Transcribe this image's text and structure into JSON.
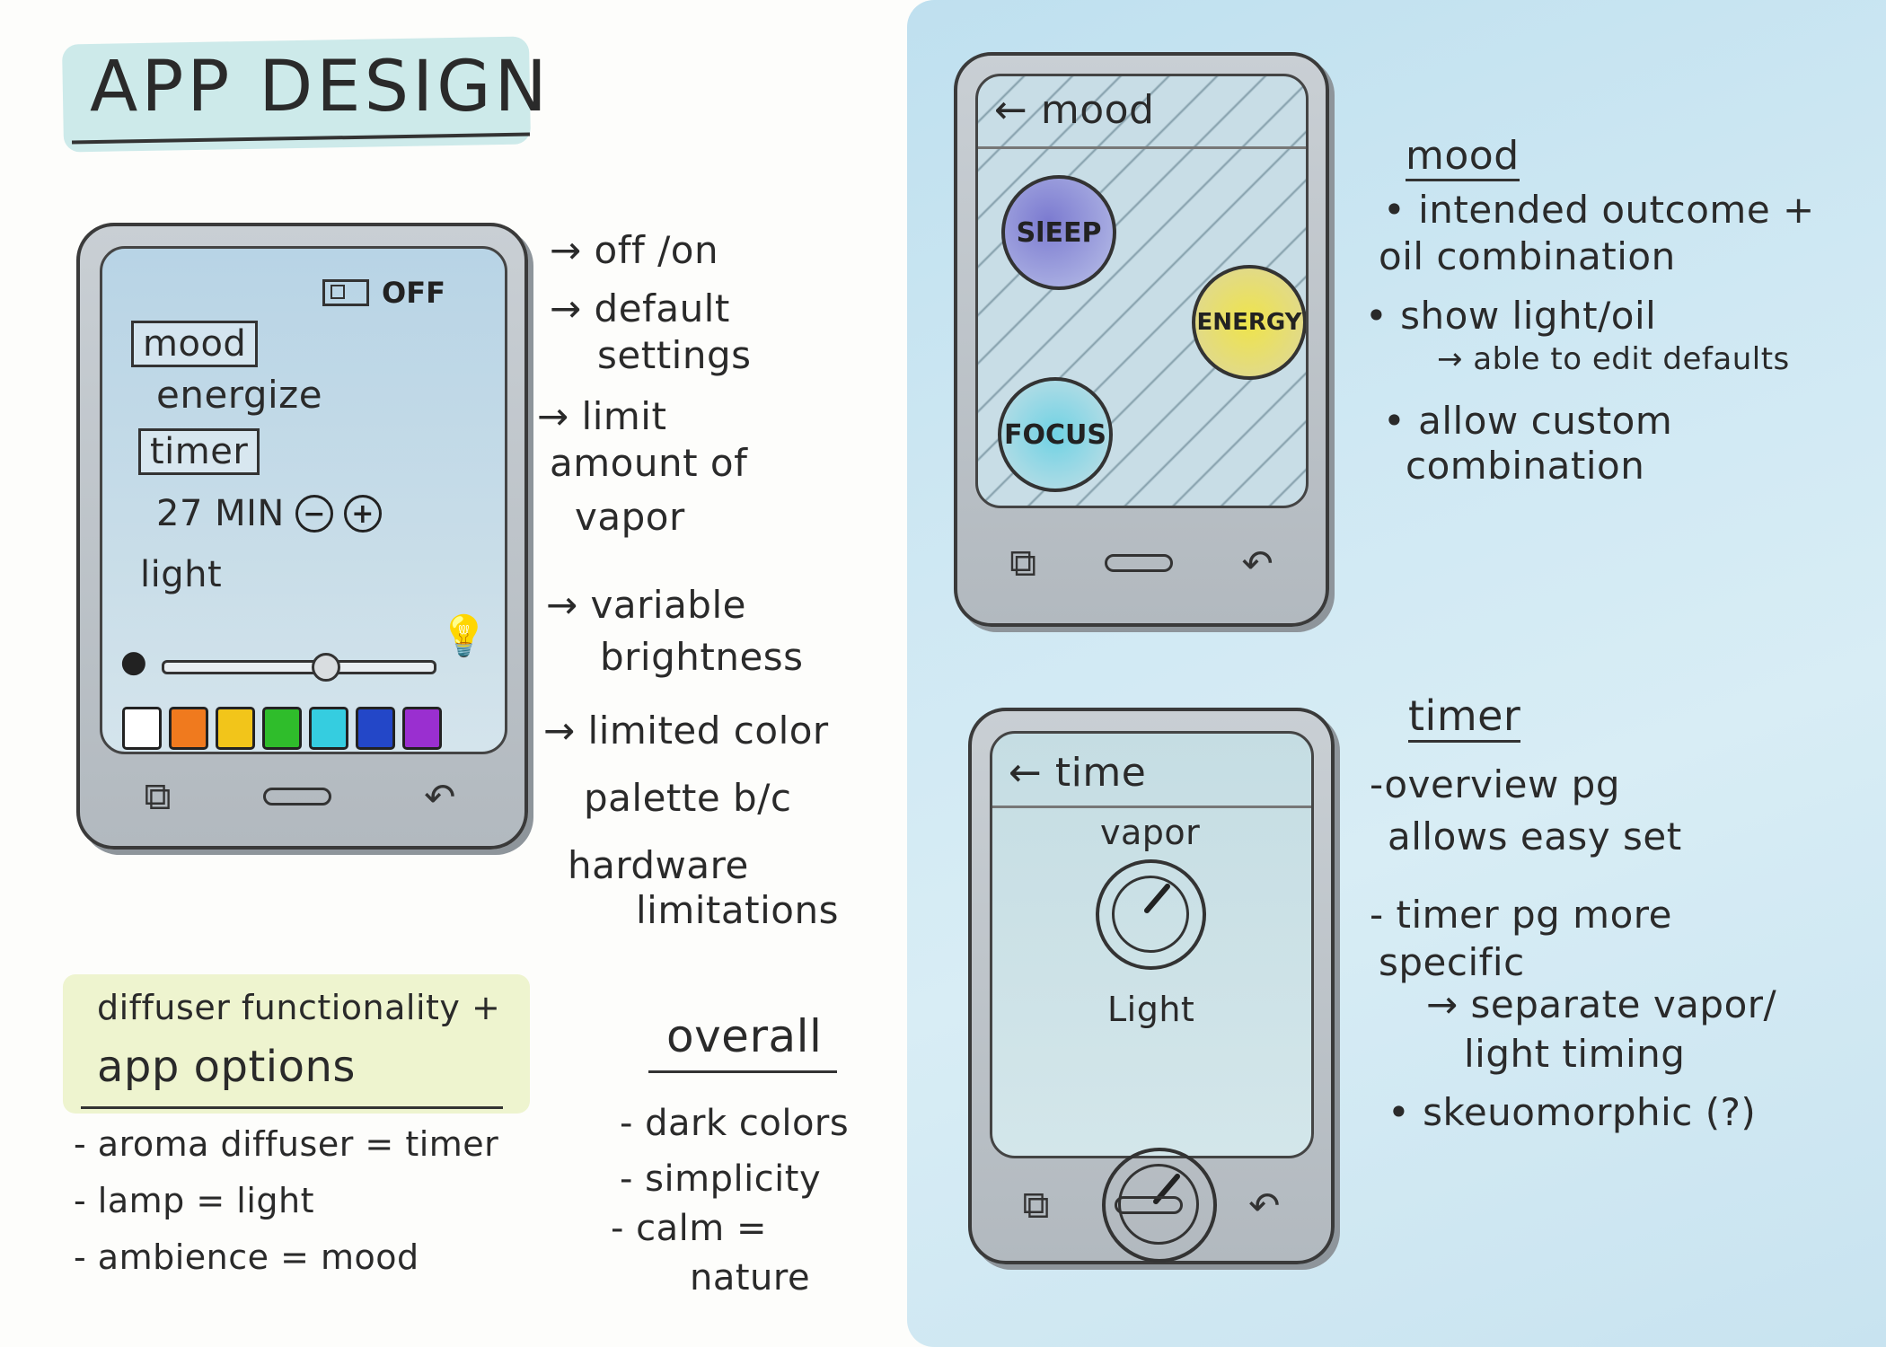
{
  "title": "APP DESIGN",
  "phone_main": {
    "toggle_label": "OFF",
    "mood_label": "mood",
    "mood_value": "energize",
    "timer_label": "timer",
    "timer_value": "27 MIN",
    "minus": "−",
    "plus": "+",
    "light_label": "light",
    "light_level": 0.6,
    "swatches": [
      "#ffffff",
      "#f07a1e",
      "#f2c51a",
      "#2fbd2b",
      "#35cde0",
      "#2347c8",
      "#9a2fd0"
    ]
  },
  "annotations": {
    "a1": "→ off /on",
    "a2a": "→ default",
    "a2b": "settings",
    "a3a": "→ limit",
    "a3b": "amount of",
    "a3c": "vapor",
    "a4a": "→ variable",
    "a4b": "brightness",
    "a5a": "→ limited color",
    "a5b": "palette b/c",
    "a5c": "hardware",
    "a5d": "limitations"
  },
  "functionality": {
    "heading1": "diffuser functionality +",
    "heading2": "app  options",
    "item1": "- aroma diffuser = timer",
    "item2": "- lamp = light",
    "item3": "- ambience = mood"
  },
  "overall": {
    "heading": "overall",
    "item1": "- dark colors",
    "item2": "- simplicity",
    "item3": "- calm =",
    "item4": "nature"
  },
  "phone_mood": {
    "header": "← mood",
    "sleep": "SlEEP",
    "energy": "ENERGY",
    "focus": "FOCUS"
  },
  "mood_notes": {
    "heading": "mood",
    "l1": "•  intended outcome +",
    "l2": "oil combination",
    "l3": "•  show light/oil",
    "l4": "→ able to edit defaults",
    "l5": "•  allow custom",
    "l6": "combination"
  },
  "phone_timer": {
    "header": "← time",
    "vapor": "vapor",
    "light": "Light",
    "vapor_level": 0.25,
    "light_level": 0.25
  },
  "timer_notes": {
    "heading": "timer",
    "l1": "-overview pg",
    "l2": "allows easy set",
    "l3": "- timer pg more",
    "l4": "specific",
    "l5": "→ separate vapor/",
    "l6": "light timing",
    "l7": "• skeuomorphic (?)"
  },
  "icons": {
    "multitask": "multitask-icon",
    "home": "home-pill-icon",
    "back": "back-arrow-icon",
    "bulb_dim": "bulb-dim-icon",
    "bulb_bright": "bulb-bright-icon",
    "toggle": "toggle-switch-icon"
  }
}
